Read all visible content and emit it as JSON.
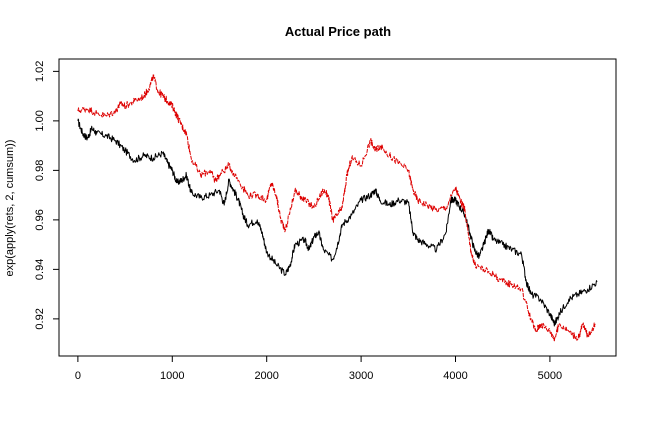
{
  "chart_data": {
    "type": "line",
    "title": "Actual Price path",
    "xlabel": "",
    "ylabel": "exp(apply(rets, 2, cumsum))",
    "xlim": [
      -200,
      5700
    ],
    "ylim": [
      0.905,
      1.025
    ],
    "x_ticks": [
      0,
      1000,
      2000,
      3000,
      4000,
      5000
    ],
    "x_tick_labels": [
      "0",
      "1000",
      "2000",
      "3000",
      "4000",
      "5000"
    ],
    "y_ticks": [
      0.92,
      0.94,
      0.96,
      0.98,
      1.0,
      1.02
    ],
    "y_tick_labels": [
      "0.92",
      "0.94",
      "0.96",
      "0.98",
      "1.00",
      "1.02"
    ],
    "grid": false,
    "legend": "none",
    "series": [
      {
        "color": "#000000",
        "line_style": "solid",
        "points": [
          [
            0,
            1.0
          ],
          [
            50,
            0.995
          ],
          [
            100,
            0.993
          ],
          [
            150,
            0.997
          ],
          [
            200,
            0.995
          ],
          [
            300,
            0.994
          ],
          [
            400,
            0.992
          ],
          [
            500,
            0.988
          ],
          [
            600,
            0.984
          ],
          [
            700,
            0.986
          ],
          [
            800,
            0.985
          ],
          [
            900,
            0.987
          ],
          [
            950,
            0.983
          ],
          [
            1000,
            0.98
          ],
          [
            1050,
            0.975
          ],
          [
            1100,
            0.976
          ],
          [
            1150,
            0.978
          ],
          [
            1200,
            0.971
          ],
          [
            1300,
            0.969
          ],
          [
            1400,
            0.97
          ],
          [
            1500,
            0.972
          ],
          [
            1550,
            0.966
          ],
          [
            1600,
            0.976
          ],
          [
            1650,
            0.972
          ],
          [
            1700,
            0.968
          ],
          [
            1750,
            0.962
          ],
          [
            1800,
            0.958
          ],
          [
            1900,
            0.96
          ],
          [
            1950,
            0.955
          ],
          [
            2000,
            0.947
          ],
          [
            2100,
            0.942
          ],
          [
            2200,
            0.938
          ],
          [
            2250,
            0.942
          ],
          [
            2300,
            0.95
          ],
          [
            2400,
            0.952
          ],
          [
            2450,
            0.948
          ],
          [
            2500,
            0.953
          ],
          [
            2550,
            0.955
          ],
          [
            2600,
            0.948
          ],
          [
            2700,
            0.944
          ],
          [
            2750,
            0.95
          ],
          [
            2800,
            0.958
          ],
          [
            2900,
            0.962
          ],
          [
            3000,
            0.968
          ],
          [
            3100,
            0.97
          ],
          [
            3150,
            0.972
          ],
          [
            3200,
            0.968
          ],
          [
            3300,
            0.966
          ],
          [
            3400,
            0.968
          ],
          [
            3500,
            0.967
          ],
          [
            3550,
            0.955
          ],
          [
            3600,
            0.952
          ],
          [
            3700,
            0.95
          ],
          [
            3800,
            0.948
          ],
          [
            3900,
            0.955
          ],
          [
            3950,
            0.968
          ],
          [
            4000,
            0.968
          ],
          [
            4050,
            0.965
          ],
          [
            4100,
            0.962
          ],
          [
            4150,
            0.955
          ],
          [
            4200,
            0.948
          ],
          [
            4250,
            0.945
          ],
          [
            4300,
            0.95
          ],
          [
            4350,
            0.956
          ],
          [
            4400,
            0.952
          ],
          [
            4500,
            0.95
          ],
          [
            4600,
            0.948
          ],
          [
            4700,
            0.946
          ],
          [
            4750,
            0.935
          ],
          [
            4800,
            0.93
          ],
          [
            4900,
            0.928
          ],
          [
            5000,
            0.922
          ],
          [
            5050,
            0.918
          ],
          [
            5100,
            0.922
          ],
          [
            5200,
            0.928
          ],
          [
            5300,
            0.93
          ],
          [
            5400,
            0.932
          ],
          [
            5500,
            0.935
          ]
        ]
      },
      {
        "color": "#dd0000",
        "line_style": "dashed",
        "points": [
          [
            0,
            1.004
          ],
          [
            100,
            1.005
          ],
          [
            200,
            1.003
          ],
          [
            300,
            1.002
          ],
          [
            400,
            1.004
          ],
          [
            450,
            1.007
          ],
          [
            500,
            1.006
          ],
          [
            600,
            1.008
          ],
          [
            700,
            1.01
          ],
          [
            750,
            1.013
          ],
          [
            800,
            1.018
          ],
          [
            850,
            1.012
          ],
          [
            900,
            1.01
          ],
          [
            950,
            1.008
          ],
          [
            1000,
            1.006
          ],
          [
            1050,
            1.002
          ],
          [
            1100,
            0.998
          ],
          [
            1150,
            0.995
          ],
          [
            1200,
            0.985
          ],
          [
            1300,
            0.978
          ],
          [
            1400,
            0.98
          ],
          [
            1450,
            0.976
          ],
          [
            1500,
            0.978
          ],
          [
            1600,
            0.982
          ],
          [
            1700,
            0.976
          ],
          [
            1800,
            0.97
          ],
          [
            1900,
            0.97
          ],
          [
            2000,
            0.968
          ],
          [
            2050,
            0.975
          ],
          [
            2100,
            0.97
          ],
          [
            2150,
            0.96
          ],
          [
            2200,
            0.956
          ],
          [
            2300,
            0.972
          ],
          [
            2350,
            0.97
          ],
          [
            2400,
            0.968
          ],
          [
            2500,
            0.965
          ],
          [
            2600,
            0.972
          ],
          [
            2650,
            0.97
          ],
          [
            2700,
            0.96
          ],
          [
            2750,
            0.962
          ],
          [
            2800,
            0.965
          ],
          [
            2850,
            0.978
          ],
          [
            2900,
            0.985
          ],
          [
            3000,
            0.982
          ],
          [
            3100,
            0.992
          ],
          [
            3150,
            0.988
          ],
          [
            3200,
            0.99
          ],
          [
            3300,
            0.986
          ],
          [
            3400,
            0.983
          ],
          [
            3500,
            0.98
          ],
          [
            3550,
            0.972
          ],
          [
            3600,
            0.968
          ],
          [
            3700,
            0.966
          ],
          [
            3800,
            0.964
          ],
          [
            3900,
            0.965
          ],
          [
            4000,
            0.973
          ],
          [
            4050,
            0.968
          ],
          [
            4100,
            0.964
          ],
          [
            4150,
            0.95
          ],
          [
            4200,
            0.942
          ],
          [
            4300,
            0.94
          ],
          [
            4400,
            0.938
          ],
          [
            4500,
            0.935
          ],
          [
            4600,
            0.934
          ],
          [
            4700,
            0.932
          ],
          [
            4800,
            0.92
          ],
          [
            4850,
            0.915
          ],
          [
            4900,
            0.918
          ],
          [
            5000,
            0.915
          ],
          [
            5050,
            0.912
          ],
          [
            5100,
            0.918
          ],
          [
            5200,
            0.915
          ],
          [
            5300,
            0.912
          ],
          [
            5350,
            0.918
          ],
          [
            5400,
            0.913
          ],
          [
            5480,
            0.918
          ]
        ]
      }
    ]
  }
}
